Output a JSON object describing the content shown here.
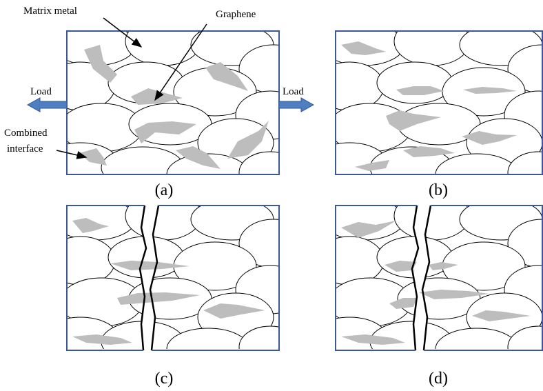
{
  "labels": {
    "matrix_metal": "Matrix metal",
    "graphene": "Graphene",
    "load_left": "Load",
    "load_right": "Load",
    "combined_interface": [
      "Combined",
      "interface"
    ]
  },
  "panels": [
    {
      "label": "(a)"
    },
    {
      "label": "(b)"
    },
    {
      "label": "(c)"
    },
    {
      "label": "(d)"
    }
  ]
}
